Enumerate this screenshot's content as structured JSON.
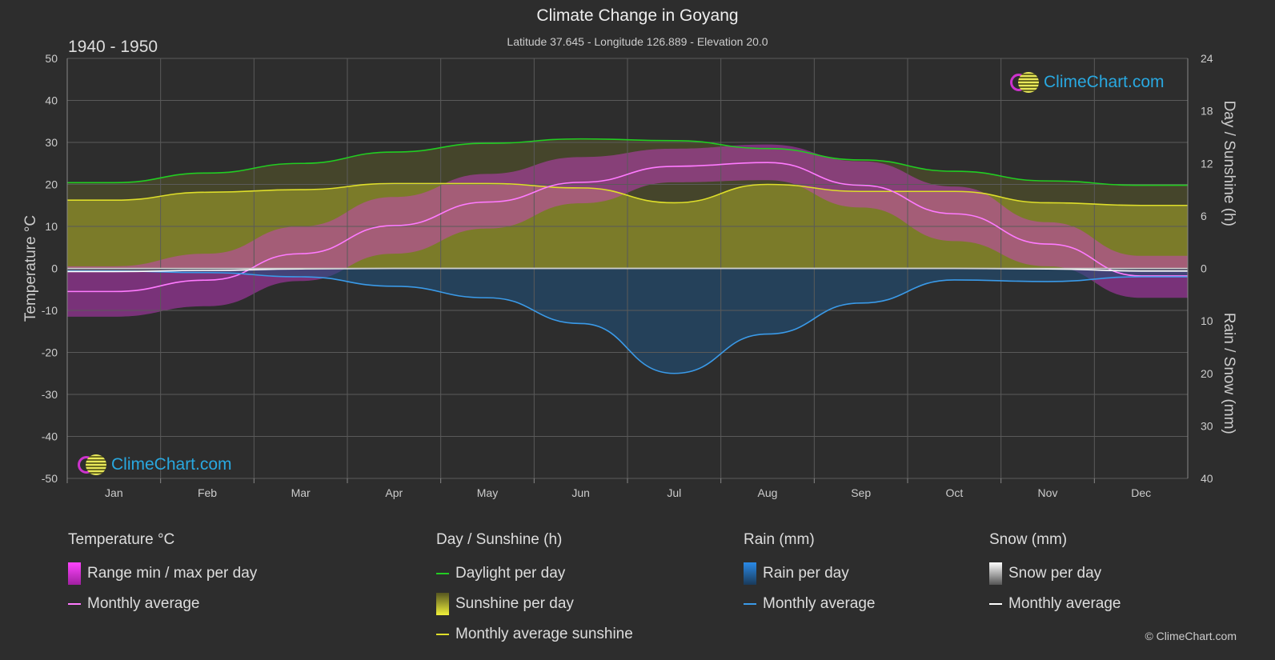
{
  "title": "Climate Change in Goyang",
  "subtitle": "Latitude 37.645 - Longitude 126.889 - Elevation 20.0",
  "period": "1940 - 1950",
  "copyright": "© ClimeChart.com",
  "logo_text": "ClimeChart.com",
  "colors": {
    "background": "#2d2d2d",
    "daylight": "#22cc22",
    "sunshine_avg": "#dede2a",
    "sunshine_fill": "#8e8e2a",
    "temp_range": "#d63ad6",
    "temp_avg": "#ff7aff",
    "rain": "#2a7fc8",
    "rain_avg": "#3a9ae8",
    "snow": "#aaaaaa",
    "snow_avg": "#ffffff"
  },
  "legend": {
    "temperature": {
      "head": "Temperature °C",
      "items": [
        "Range min / max per day",
        "Monthly average"
      ]
    },
    "sunshine": {
      "head": "Day / Sunshine (h)",
      "items": [
        "Daylight per day",
        "Sunshine per day",
        "Monthly average sunshine"
      ]
    },
    "rain": {
      "head": "Rain (mm)",
      "items": [
        "Rain per day",
        "Monthly average"
      ]
    },
    "snow": {
      "head": "Snow (mm)",
      "items": [
        "Snow per day",
        "Monthly average"
      ]
    }
  },
  "chart_data": {
    "type": "line",
    "categories": [
      "Jan",
      "Feb",
      "Mar",
      "Apr",
      "May",
      "Jun",
      "Jul",
      "Aug",
      "Sep",
      "Oct",
      "Nov",
      "Dec"
    ],
    "left_axis": {
      "label": "Temperature °C",
      "range": [
        -50,
        50
      ],
      "ticks": [
        50,
        40,
        30,
        20,
        10,
        0,
        -10,
        -20,
        -30,
        -40,
        -50
      ]
    },
    "right_axis_top": {
      "label": "Day / Sunshine (h)",
      "range": [
        0,
        24
      ],
      "ticks": [
        24,
        18,
        12,
        6,
        0
      ]
    },
    "right_axis_bottom": {
      "label": "Rain / Snow (mm)",
      "range": [
        0,
        40
      ],
      "ticks": [
        0,
        10,
        20,
        30,
        40
      ]
    },
    "grid": true,
    "series": [
      {
        "name": "Daylight per day",
        "axis": "hours",
        "values": [
          9.8,
          10.9,
          12.0,
          13.3,
          14.3,
          14.8,
          14.6,
          13.7,
          12.4,
          11.1,
          10.0,
          9.5
        ]
      },
      {
        "name": "Monthly average sunshine",
        "axis": "hours",
        "values": [
          7.8,
          8.7,
          9.0,
          9.7,
          9.7,
          9.2,
          7.5,
          9.6,
          8.8,
          8.8,
          7.5,
          7.2
        ]
      },
      {
        "name": "Temperature monthly average",
        "axis": "temperature",
        "values": [
          -5.5,
          -2.8,
          3.5,
          10.2,
          15.8,
          20.5,
          24.3,
          25.2,
          19.8,
          13.0,
          5.8,
          -1.8
        ]
      },
      {
        "name": "Temperature max per day (avg)",
        "axis": "temperature",
        "values": [
          0.5,
          3.5,
          10.0,
          17.0,
          22.5,
          26.5,
          28.5,
          29.5,
          25.5,
          19.5,
          11.0,
          3.0
        ]
      },
      {
        "name": "Temperature min per day (avg)",
        "axis": "temperature",
        "values": [
          -11.5,
          -9.0,
          -3.0,
          3.5,
          9.5,
          15.5,
          20.5,
          21.0,
          14.5,
          6.5,
          0.5,
          -7.0
        ]
      },
      {
        "name": "Rain monthly average",
        "axis": "precip",
        "values": [
          0.5,
          0.8,
          1.6,
          3.4,
          5.6,
          10.5,
          20.0,
          12.5,
          6.6,
          2.2,
          2.5,
          1.6
        ]
      },
      {
        "name": "Snow monthly average",
        "axis": "precip",
        "values": [
          0.6,
          0.4,
          0.1,
          0,
          0,
          0,
          0,
          0,
          0,
          0,
          0.1,
          0.5
        ]
      }
    ]
  }
}
